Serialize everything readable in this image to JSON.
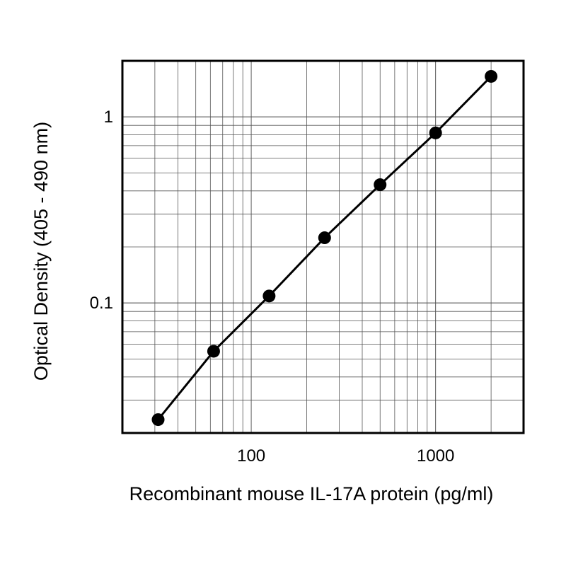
{
  "chart_data": {
    "type": "line",
    "x_label": "Recombinant mouse IL-17A protein (pg/ml)",
    "y_label": "Optical Density (405 - 490 nm)",
    "x": [
      31.25,
      62.5,
      125,
      250,
      500,
      1000,
      2000
    ],
    "series": [
      {
        "color": "#000000",
        "values": [
          0.0236,
          0.055,
          0.109,
          0.224,
          0.432,
          0.82,
          1.65
        ]
      }
    ],
    "xlim": [
      20,
      3000
    ],
    "ylim": [
      0.02,
      2
    ],
    "xticks": [
      100,
      1000
    ],
    "yticks": [
      0.1,
      1
    ],
    "xscale": "log",
    "yscale": "log",
    "grid": true
  }
}
